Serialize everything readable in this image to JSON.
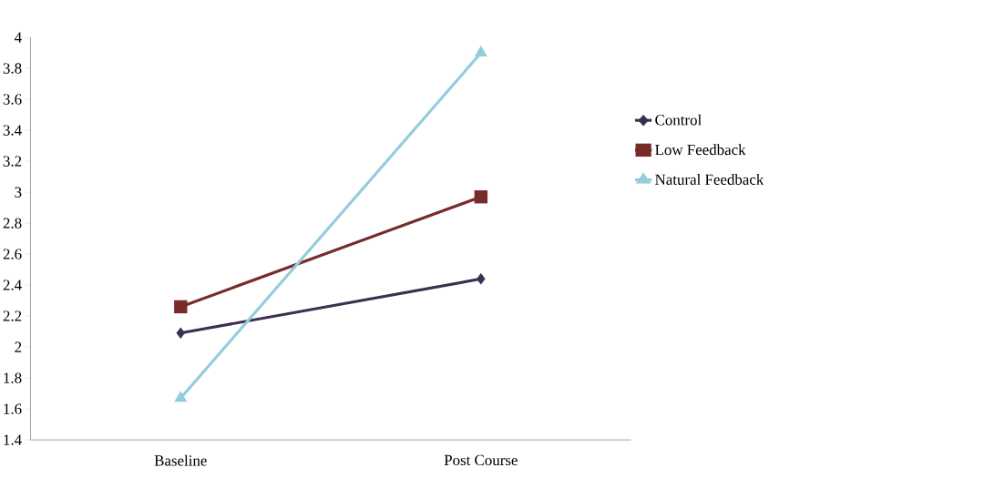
{
  "chart_data": {
    "type": "line",
    "categories": [
      "Baseline",
      "Post Course"
    ],
    "series": [
      {
        "name": "Control",
        "color": "#3b2f52",
        "marker": "diamond",
        "values": [
          2.09,
          2.44
        ]
      },
      {
        "name": "Low Feedback",
        "color": "#772c2a",
        "marker": "square",
        "values": [
          2.26,
          2.97
        ]
      },
      {
        "name": "Natural Feedback",
        "color": "#92cddc",
        "marker": "triangle",
        "values": [
          1.67,
          3.9
        ]
      }
    ],
    "ylim": [
      1.4,
      4
    ],
    "yticks": [
      1.4,
      1.6,
      1.8,
      2,
      2.2,
      2.4,
      2.6,
      2.8,
      3,
      3.2,
      3.4,
      3.6,
      3.8,
      4
    ],
    "grid": false,
    "legend": "right",
    "line_style": "solid"
  }
}
